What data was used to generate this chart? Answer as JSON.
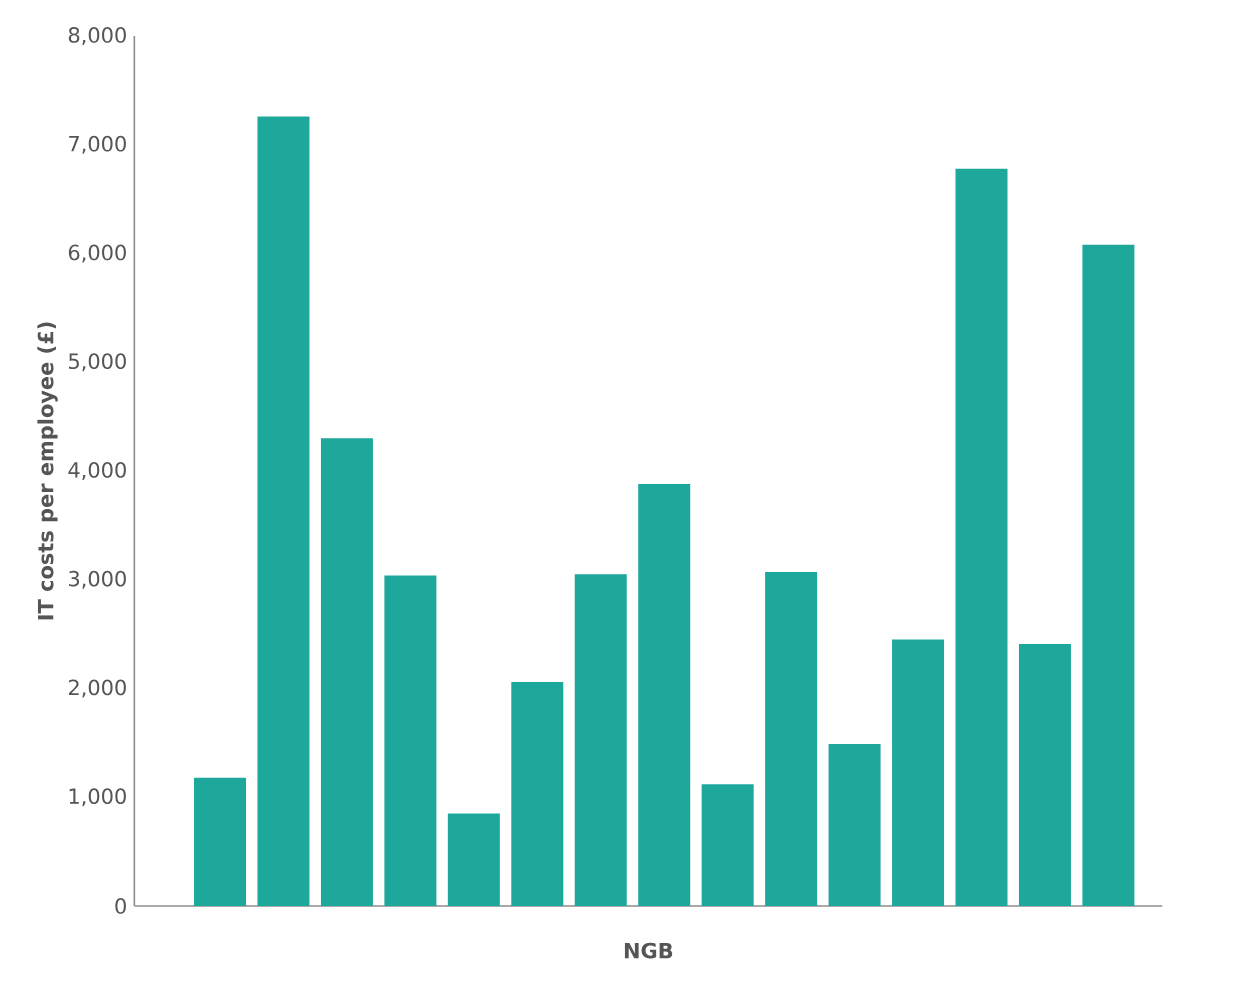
{
  "chart_data": {
    "type": "bar",
    "xlabel": "NGB",
    "ylabel": "IT costs per employee (£)",
    "categories": [
      null,
      null,
      null,
      null,
      null,
      null,
      null,
      null,
      null,
      null,
      null,
      null,
      null,
      null,
      null
    ],
    "values": [
      1180,
      7260,
      4300,
      3040,
      850,
      2060,
      3050,
      3880,
      1120,
      3070,
      1490,
      2450,
      6780,
      2410,
      6080
    ],
    "color": "#1ea89c",
    "ylim": [
      0,
      8000
    ],
    "yticks": [
      0,
      {
        "value": 1000,
        "label": "1,000"
      },
      {
        "value": 2000,
        "label": "2,000"
      },
      {
        "value": 3000,
        "label": "3,000"
      },
      {
        "value": 4000,
        "label": "4,000"
      },
      {
        "value": 5000,
        "label": "5,000"
      },
      {
        "value": 6000,
        "label": "6,000"
      },
      {
        "value": 7000,
        "label": "7,000"
      },
      {
        "value": 8000,
        "label": "8,000"
      }
    ]
  }
}
